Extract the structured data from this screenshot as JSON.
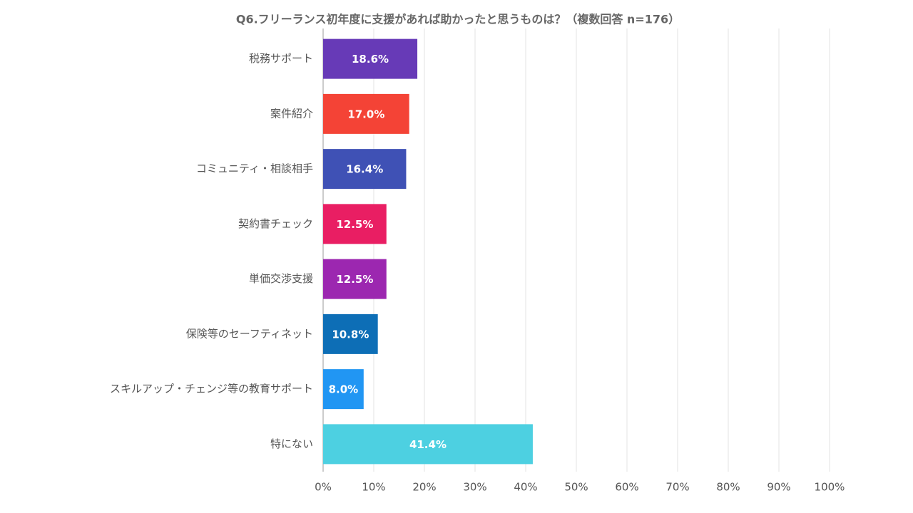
{
  "chart_data": {
    "type": "barh",
    "title": "Q6.フリーランス初年度に支援があれば助かったと思うものは？（複数回答 n=176）",
    "categories": [
      "税務サポート",
      "案件紹介",
      "コミュニティ・相談相手",
      "契約書チェック",
      "単価交渉支援",
      "保険等のセーフティネット",
      "スキルアップ・チェンジ等の教育サポート",
      "特にない"
    ],
    "values": [
      18.6,
      17.0,
      16.4,
      12.5,
      12.5,
      10.8,
      8.0,
      41.4
    ],
    "value_labels": [
      "18.6%",
      "17.0%",
      "16.4%",
      "12.5%",
      "12.5%",
      "10.8%",
      "8.0%",
      "41.4%"
    ],
    "colors": [
      "#673ab7",
      "#f44336",
      "#3f51b5",
      "#e91e63",
      "#9c27b0",
      "#0d6eb6",
      "#2196f3",
      "#4dd0e1"
    ],
    "xlim": [
      0,
      100
    ],
    "xticks": [
      {
        "value": 0,
        "label": "0%"
      },
      {
        "value": 10,
        "label": "10%"
      },
      {
        "value": 20,
        "label": "20%"
      },
      {
        "value": 30,
        "label": "30%"
      },
      {
        "value": 40,
        "label": "40%"
      },
      {
        "value": 50,
        "label": "50%"
      },
      {
        "value": 60,
        "label": "60%"
      },
      {
        "value": 70,
        "label": "70%"
      },
      {
        "value": 80,
        "label": "80%"
      },
      {
        "value": 90,
        "label": "90%"
      },
      {
        "value": 100,
        "label": "100%"
      }
    ],
    "grid": true
  }
}
